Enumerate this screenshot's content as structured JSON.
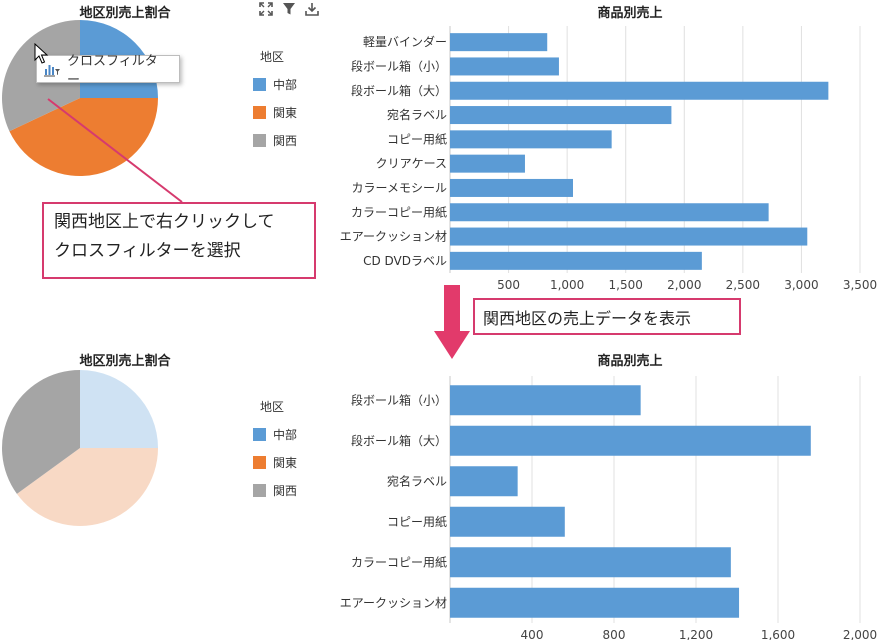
{
  "colors": {
    "bar": "#5b9bd5",
    "pie": [
      "#5b9bd5",
      "#ed7d31",
      "#a5a5a5"
    ],
    "pie_faded": [
      "#cfe2f3",
      "#f8d9c5",
      "#a5a5a5"
    ],
    "callout_border": "#d63a6e",
    "arrow": "#e23a6b",
    "gridline": "#e0e0e0"
  },
  "icons": [
    "fullscreen-icon",
    "filter-icon",
    "download-icon",
    "cross-filter-icon"
  ],
  "top": {
    "pie_title": "地区別売上割合",
    "bar_title": "商品別売上",
    "legend_title": "地区",
    "legend_items": [
      "中部",
      "関東",
      "関西"
    ],
    "context_menu_label": "クロスフィルター",
    "callout_lines": [
      "関西地区上で右クリックして",
      "クロスフィルターを選択"
    ]
  },
  "middle": {
    "callout_text": "関西地区の売上データを表示"
  },
  "bottom": {
    "pie_title": "地区別売上割合",
    "bar_title": "商品別売上",
    "legend_title": "地区",
    "legend_items": [
      "中部",
      "関東",
      "関西"
    ]
  },
  "chart_data": [
    {
      "type": "pie",
      "title": "地区別売上割合",
      "legend_title": "地区",
      "categories": [
        "中部",
        "関東",
        "関西"
      ],
      "values": [
        25,
        43,
        32
      ]
    },
    {
      "type": "bar",
      "orientation": "horizontal",
      "title": "商品別売上",
      "categories": [
        "軽量バインダー",
        "段ボール箱（小）",
        "段ボール箱（大）",
        "宛名ラベル",
        "コピー用紙",
        "クリアケース",
        "カラーメモシール",
        "カラーコピー用紙",
        "エアークッション材",
        "CD DVDラベル"
      ],
      "values": [
        830,
        930,
        3230,
        1890,
        1380,
        640,
        1050,
        2720,
        3050,
        2150
      ],
      "xlim": [
        0,
        3500
      ],
      "xticks": [
        "500",
        "1,000",
        "1,500",
        "2,000",
        "2,500",
        "3,000",
        "3,500"
      ],
      "grid": true
    },
    {
      "type": "pie",
      "title": "地区別売上割合",
      "legend_title": "地区",
      "categories": [
        "中部",
        "関東",
        "関西"
      ],
      "values": [
        25,
        40,
        35
      ],
      "highlighted": "関西"
    },
    {
      "type": "bar",
      "orientation": "horizontal",
      "title": "商品別売上",
      "categories": [
        "段ボール箱（小）",
        "段ボール箱（大）",
        "宛名ラベル",
        "コピー用紙",
        "カラーコピー用紙",
        "エアークッション材"
      ],
      "values": [
        930,
        1760,
        330,
        560,
        1370,
        1410
      ],
      "xlim": [
        0,
        2000
      ],
      "xticks": [
        "400",
        "800",
        "1,200",
        "1,600",
        "2,000"
      ],
      "grid": true
    }
  ]
}
